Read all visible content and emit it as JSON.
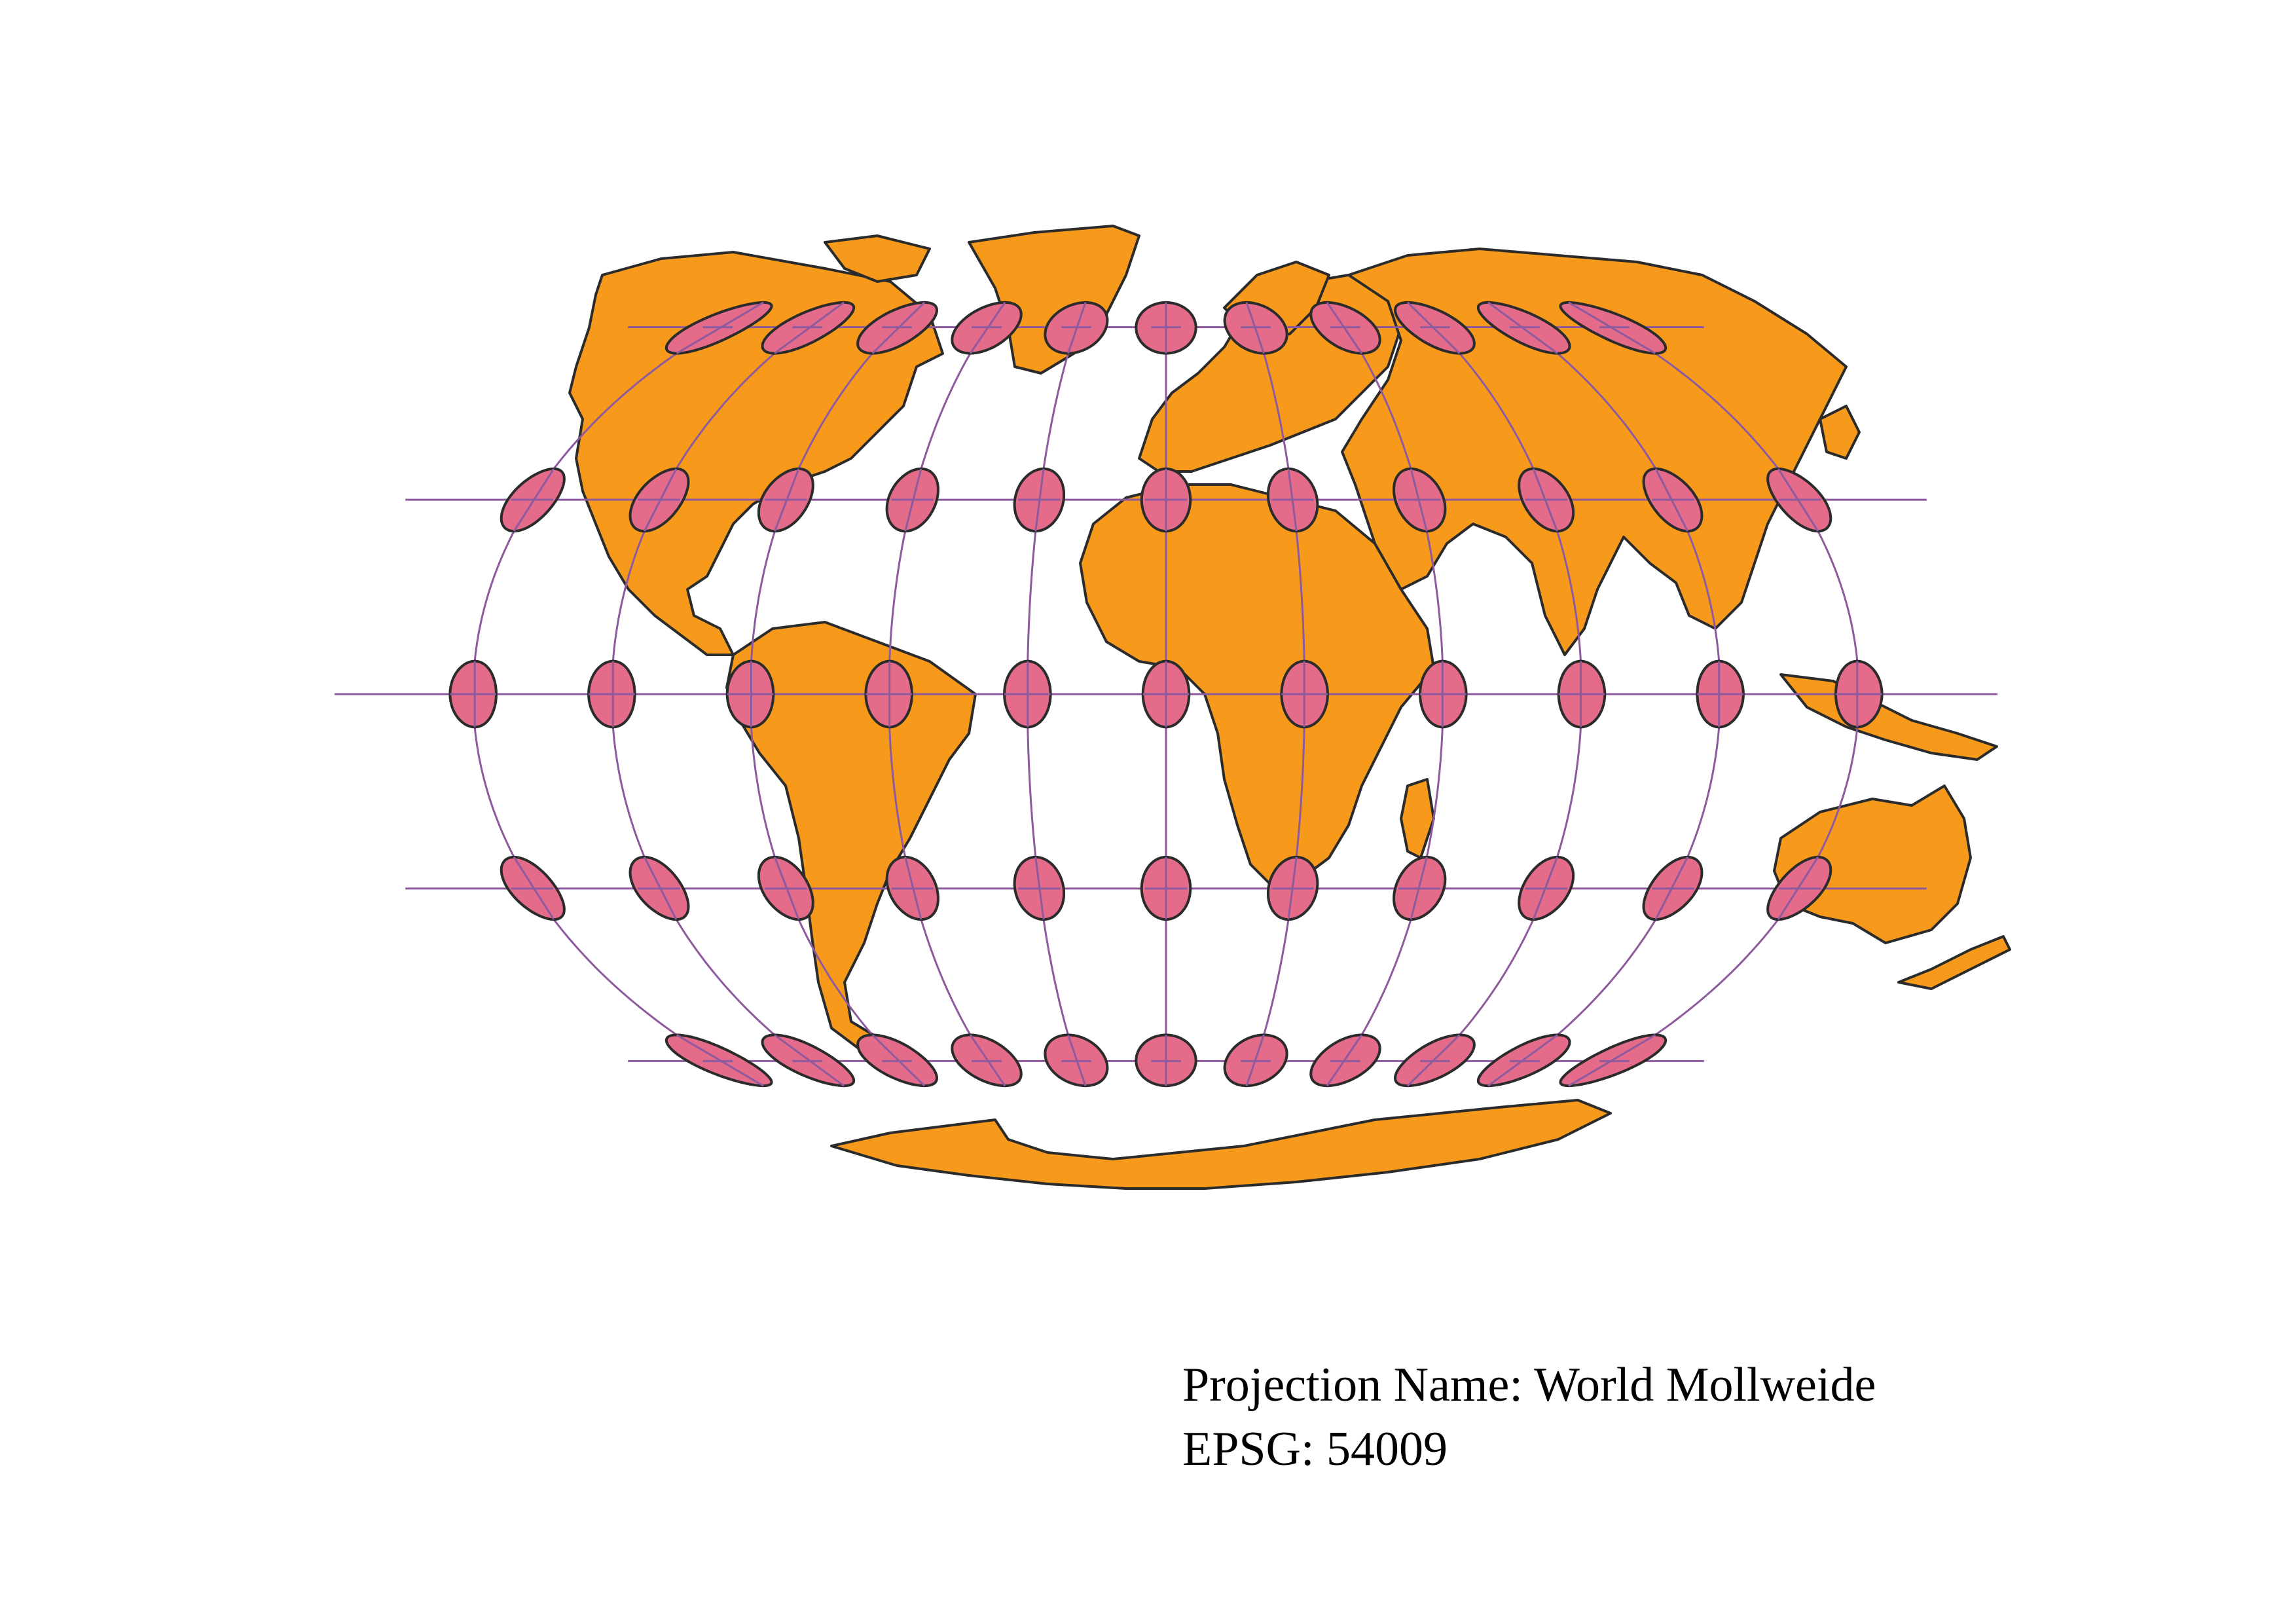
{
  "map": {
    "projection_name_label": "Projection Name: World Mollweide",
    "epsg_label": "EPSG: 54009",
    "layers": [
      {
        "name": "countries",
        "fill": "#F79A1C",
        "stroke": "#2B2B2B"
      },
      {
        "name": "graticule",
        "stroke": "#8E5A9E"
      },
      {
        "name": "tissot-indicatrices",
        "fill": "#E56B8A",
        "stroke": "#2B2B2B"
      }
    ],
    "graticule": {
      "latitudes": [
        -60,
        -30,
        0,
        30,
        60
      ],
      "longitudes": [
        -150,
        -120,
        -90,
        -60,
        -30,
        0,
        30,
        60,
        90,
        120,
        150
      ]
    },
    "indicatrices": {
      "latitudes": [
        -60,
        -30,
        0,
        30,
        60
      ],
      "longitudes": [
        -150,
        -120,
        -90,
        -60,
        -30,
        0,
        30,
        60,
        90,
        120,
        150
      ],
      "radius_deg": 5
    }
  }
}
